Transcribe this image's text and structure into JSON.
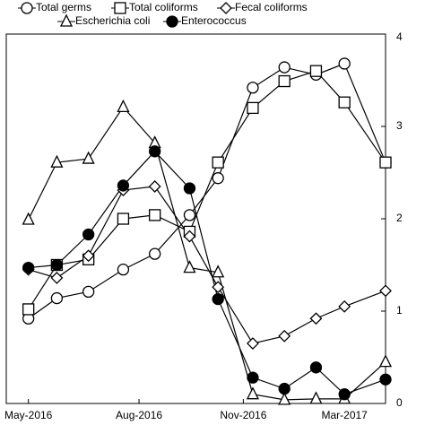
{
  "chart_data": {
    "type": "line",
    "x": [
      0,
      0.9,
      1.9,
      3.0,
      4.0,
      5.1,
      6.0,
      7.1,
      8.1,
      9.1,
      10.0,
      11.3
    ],
    "xlim": [
      -0.7,
      11.3
    ],
    "xticks": [
      {
        "value": 0,
        "label": "May-2016"
      },
      {
        "value": 3.5,
        "label": "Aug-2016"
      },
      {
        "value": 6.8,
        "label": "Nov-2016"
      },
      {
        "value": 10,
        "label": "Mar-2017"
      }
    ],
    "ylim": [
      0,
      4
    ],
    "yticks": [
      0,
      1,
      2,
      3,
      4
    ],
    "y_axis_side": "right",
    "series": [
      {
        "name": "Total germs",
        "color": "#000000",
        "marker": "circle-open",
        "values": [
          0.92,
          1.14,
          1.21,
          1.45,
          1.62,
          2.04,
          2.44,
          3.42,
          3.64,
          3.56,
          3.68,
          2.61
        ]
      },
      {
        "name": "Total coliforms",
        "color": "#000000",
        "marker": "square-open",
        "values": [
          1.02,
          1.5,
          1.56,
          2.0,
          2.04,
          1.86,
          2.61,
          3.2,
          3.49,
          3.6,
          3.26,
          2.61
        ]
      },
      {
        "name": "Fecal coliforms",
        "color": "#000000",
        "marker": "diamond-open",
        "values": [
          1.45,
          1.36,
          1.6,
          2.31,
          2.35,
          1.81,
          1.26,
          0.65,
          0.73,
          0.92,
          1.05,
          1.22
        ]
      },
      {
        "name": "Escherichia coli",
        "color": "#000000",
        "marker": "triangle-open",
        "values": [
          1.99,
          2.61,
          2.65,
          3.21,
          2.82,
          1.47,
          1.42,
          0.1,
          0.04,
          0.05,
          0.05,
          0.45
        ]
      },
      {
        "name": "Enterococcus",
        "color": "#000000",
        "marker": "circle-filled",
        "values": [
          1.47,
          1.5,
          1.83,
          2.36,
          2.73,
          2.33,
          1.13,
          0.28,
          0.16,
          0.39,
          0.1,
          0.26
        ]
      }
    ]
  }
}
